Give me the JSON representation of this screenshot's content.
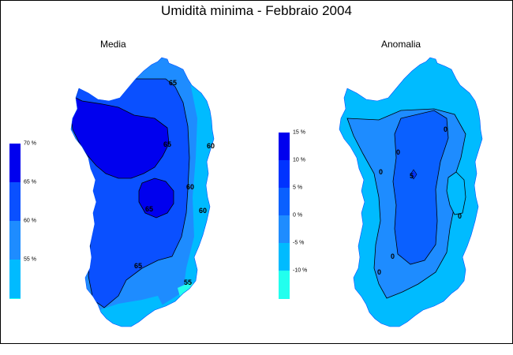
{
  "title": "Umidità minima - Febbraio 2004",
  "maps": [
    {
      "subtitle": "Media",
      "legend": [
        {
          "label": "70 %",
          "color": "#0000ee"
        },
        {
          "label": "65 %",
          "color": "#0a50ff"
        },
        {
          "label": "60 %",
          "color": "#1e8cff"
        },
        {
          "label": "55 %",
          "color": "#00bbff"
        },
        {
          "label": "",
          "color": "#22ffee"
        }
      ],
      "contour_labels": [
        "65",
        "65",
        "65",
        "65",
        "60",
        "60",
        "60",
        "55"
      ]
    },
    {
      "subtitle": "Anomalia",
      "legend": [
        {
          "label": "15 %",
          "color": "#0000ee"
        },
        {
          "label": "10 %",
          "color": "#0033ff"
        },
        {
          "label": "5 %",
          "color": "#0a60ff"
        },
        {
          "label": "0 %",
          "color": "#1e8cff"
        },
        {
          "label": "-5 %",
          "color": "#00bbff"
        },
        {
          "label": "-10 %",
          "color": "#22ffee"
        }
      ],
      "contour_labels": [
        "0",
        "0",
        "0",
        "5",
        "0",
        "0",
        "0"
      ]
    }
  ]
}
